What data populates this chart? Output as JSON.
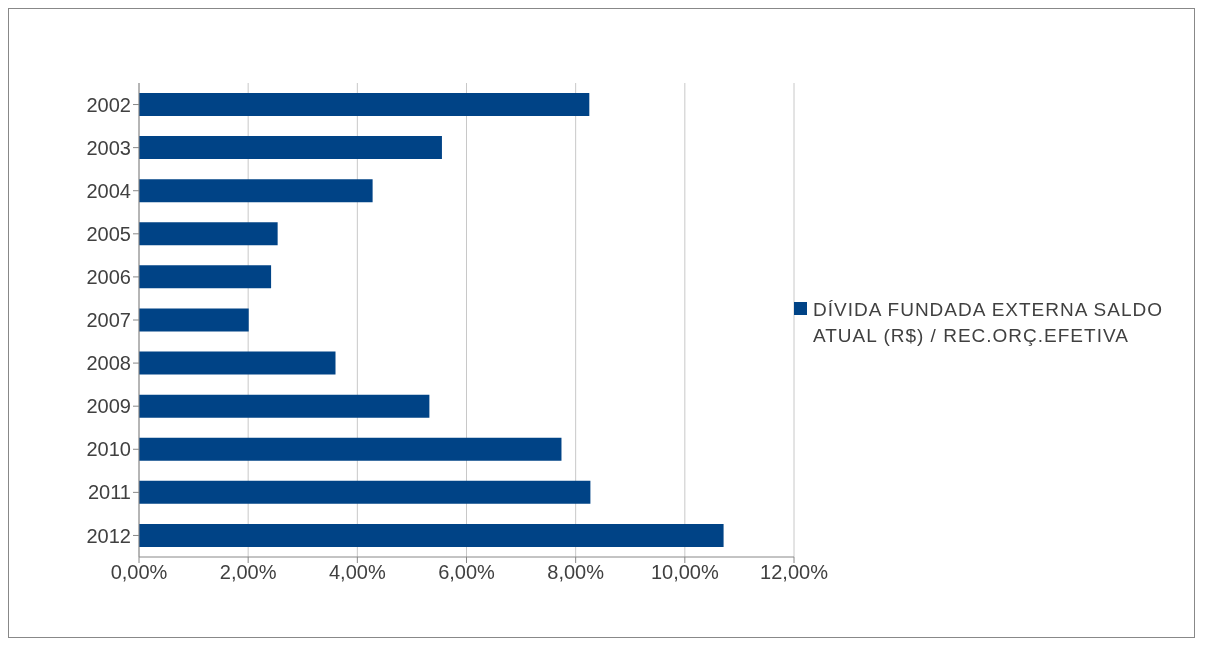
{
  "chart_data": {
    "type": "bar",
    "orientation": "horizontal",
    "categories": [
      "2002",
      "2003",
      "2004",
      "2005",
      "2006",
      "2007",
      "2008",
      "2009",
      "2010",
      "2011",
      "2012"
    ],
    "series": [
      {
        "name": "DÍVIDA FUNDADA EXTERNA SALDO ATUAL (R$) / REC.ORÇ.EFETIVA",
        "color": "#004386",
        "values": [
          8.25,
          5.55,
          4.28,
          2.54,
          2.42,
          2.01,
          3.6,
          5.32,
          7.74,
          8.27,
          10.71
        ]
      }
    ],
    "xlim": [
      0,
      12
    ],
    "xticks": [
      {
        "value": 0,
        "label": "0,00%"
      },
      {
        "value": 2,
        "label": "2,00%"
      },
      {
        "value": 4,
        "label": "4,00%"
      },
      {
        "value": 6,
        "label": "6,00%"
      },
      {
        "value": 8,
        "label": "8,00%"
      },
      {
        "value": 10,
        "label": "10,00%"
      },
      {
        "value": 12,
        "label": "12,00%"
      }
    ],
    "grid": "x",
    "legend": "right"
  }
}
